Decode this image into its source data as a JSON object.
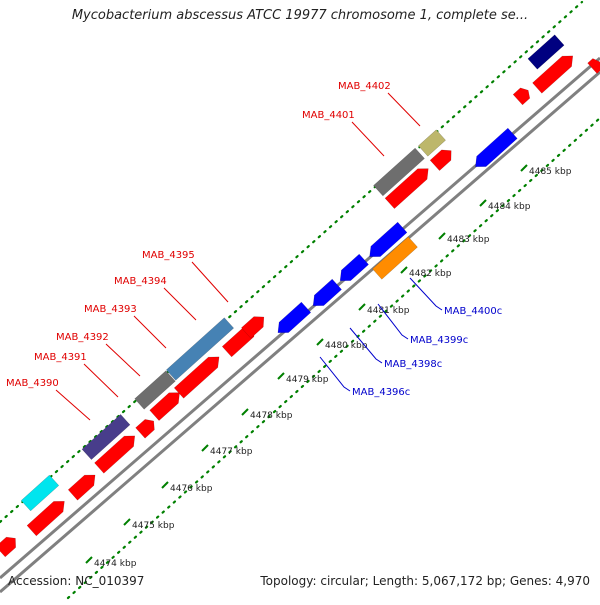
{
  "title": "Mycobacterium abscessus ATCC 19977 chromosome 1, complete se...",
  "footer": {
    "accession": "Accession: NC_010397",
    "summary": "Topology: circular; Length: 5,067,172 bp; Genes: 4,970"
  },
  "axis_ticks": [
    "4474 kbp",
    "4475 kbp",
    "4476 kbp",
    "4477 kbp",
    "4478 kbp",
    "4479 kbp",
    "4480 kbp",
    "4481 kbp",
    "4482 kbp",
    "4483 kbp",
    "4484 kbp",
    "4485 kbp"
  ],
  "forward_gene_labels": [
    "MAB_4390",
    "MAB_4391",
    "MAB_4392",
    "MAB_4393",
    "MAB_4394",
    "MAB_4395",
    "MAB_4401",
    "MAB_4402"
  ],
  "reverse_gene_labels": [
    "MAB_4396c",
    "MAB_4398c",
    "MAB_4399c",
    "MAB_4400c"
  ],
  "colors": {
    "forward_cds": "#ff0000",
    "reverse_cds": "#0000ff",
    "backbone": "#808080",
    "ticks": "#008000",
    "fwd_label": "#e00000",
    "rev_label": "#0000cc",
    "cog_gray": "#6e6e6e",
    "cog_steel": "#4682b4",
    "cog_indigo": "#483d8b",
    "cog_cyan": "#00e5ee",
    "cog_khaki": "#bdb76b",
    "cog_orange": "#ff8c00",
    "cog_navy": "#000080"
  }
}
